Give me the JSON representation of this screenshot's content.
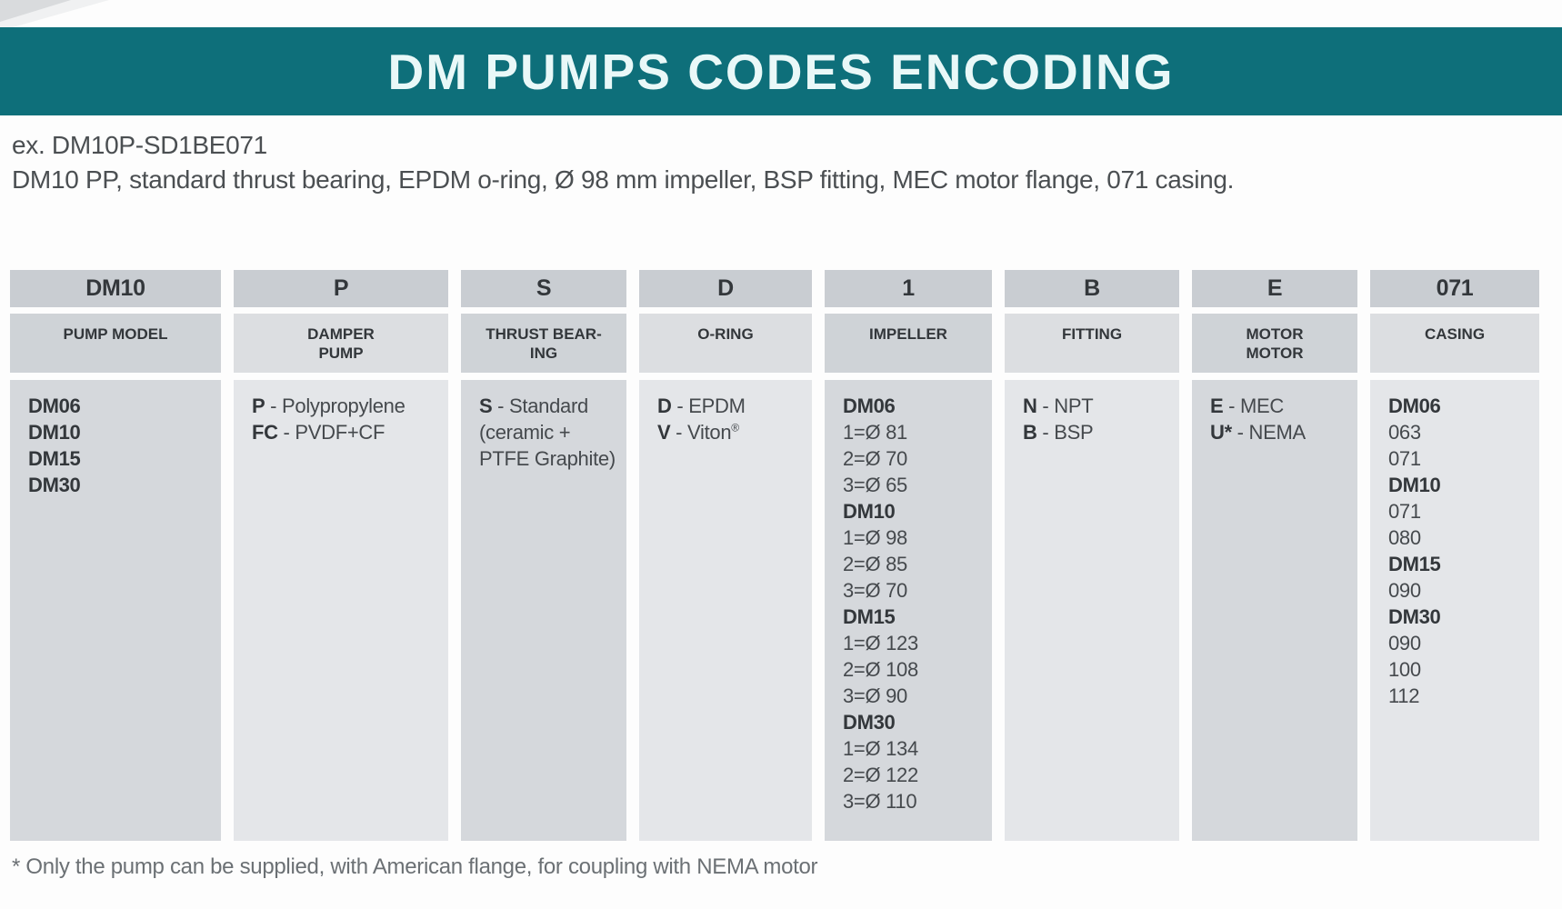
{
  "banner": {
    "title": "DM PUMPS CODES ENCODING"
  },
  "example": {
    "code": "ex. DM10P-SD1BE071",
    "description": "DM10 PP, standard thrust bearing, EPDM o-ring, Ø 98 mm impeller, BSP fitting, MEC motor flange, 071 casing."
  },
  "colors": {
    "banner_bg": "#0e6f7a",
    "banner_text": "#e9f8f8",
    "header_bg": "#c9cdd2",
    "subheader_dark": "#cfd3d7",
    "subheader_light": "#dcdee1",
    "body_dark": "#d5d8dc",
    "body_light": "#e4e6e9",
    "text_bold": "#33373b",
    "text_regular": "#45494d",
    "example_text": "#4b4f52",
    "footnote_text": "#6b7074"
  },
  "table": {
    "columns": [
      {
        "code": "DM10",
        "label_lines": [
          "PUMP MODEL"
        ],
        "shade": "dark",
        "body_lines": [
          {
            "b": "DM06",
            "r": ""
          },
          {
            "b": "DM10",
            "r": ""
          },
          {
            "b": "DM15",
            "r": ""
          },
          {
            "b": "DM30",
            "r": ""
          }
        ]
      },
      {
        "code": "P",
        "label_lines": [
          "DAMPER",
          "PUMP"
        ],
        "shade": "light",
        "body_lines": [
          {
            "b": "P",
            "r": " - Polypropylene"
          },
          {
            "b": "FC",
            "r": " - PVDF+CF"
          }
        ]
      },
      {
        "code": "S",
        "label_lines": [
          "THRUST BEAR-",
          "ING"
        ],
        "shade": "dark",
        "body_lines": [
          {
            "b": "S",
            "r": " - Standard"
          },
          {
            "b": "",
            "r": "(ceramic +"
          },
          {
            "b": "",
            "r": "PTFE Graphite)"
          }
        ]
      },
      {
        "code": "D",
        "label_lines": [
          "O-RING"
        ],
        "shade": "light",
        "body_lines": [
          {
            "b": "D",
            "r": " - EPDM"
          },
          {
            "b": "V",
            "r": " - Viton®"
          }
        ]
      },
      {
        "code": "1",
        "label_lines": [
          "IMPELLER"
        ],
        "shade": "dark",
        "body_lines": [
          {
            "b": "DM06",
            "r": ""
          },
          {
            "b": "",
            "r": "1=Ø 81"
          },
          {
            "b": "",
            "r": "2=Ø 70"
          },
          {
            "b": "",
            "r": "3=Ø 65"
          },
          {
            "b": "DM10",
            "r": ""
          },
          {
            "b": "",
            "r": "1=Ø 98"
          },
          {
            "b": "",
            "r": "2=Ø 85"
          },
          {
            "b": "",
            "r": "3=Ø 70"
          },
          {
            "b": "DM15",
            "r": ""
          },
          {
            "b": "",
            "r": "1=Ø 123"
          },
          {
            "b": "",
            "r": "2=Ø 108"
          },
          {
            "b": "",
            "r": "3=Ø 90"
          },
          {
            "b": "DM30",
            "r": ""
          },
          {
            "b": "",
            "r": "1=Ø 134"
          },
          {
            "b": "",
            "r": "2=Ø 122"
          },
          {
            "b": "",
            "r": "3=Ø 110"
          }
        ]
      },
      {
        "code": "B",
        "label_lines": [
          "FITTING"
        ],
        "shade": "light",
        "body_lines": [
          {
            "b": "N",
            "r": " - NPT"
          },
          {
            "b": "B",
            "r": " - BSP"
          }
        ]
      },
      {
        "code": "E",
        "label_lines": [
          "MOTOR",
          "MOTOR"
        ],
        "shade": "dark",
        "body_lines": [
          {
            "b": "E",
            "r": " - MEC"
          },
          {
            "b": "U*",
            "r": " - NEMA"
          }
        ]
      },
      {
        "code": "071",
        "label_lines": [
          "CASING"
        ],
        "shade": "light",
        "body_lines": [
          {
            "b": "DM06",
            "r": ""
          },
          {
            "b": "",
            "r": "063"
          },
          {
            "b": "",
            "r": "071"
          },
          {
            "b": "DM10",
            "r": ""
          },
          {
            "b": "",
            "r": "071"
          },
          {
            "b": "",
            "r": "080"
          },
          {
            "b": "DM15",
            "r": ""
          },
          {
            "b": "",
            "r": "090"
          },
          {
            "b": "DM30",
            "r": ""
          },
          {
            "b": "",
            "r": "090"
          },
          {
            "b": "",
            "r": "100"
          },
          {
            "b": "",
            "r": "112"
          }
        ]
      }
    ]
  },
  "footnote": "* Only the pump can be supplied, with American flange, for coupling with NEMA motor"
}
